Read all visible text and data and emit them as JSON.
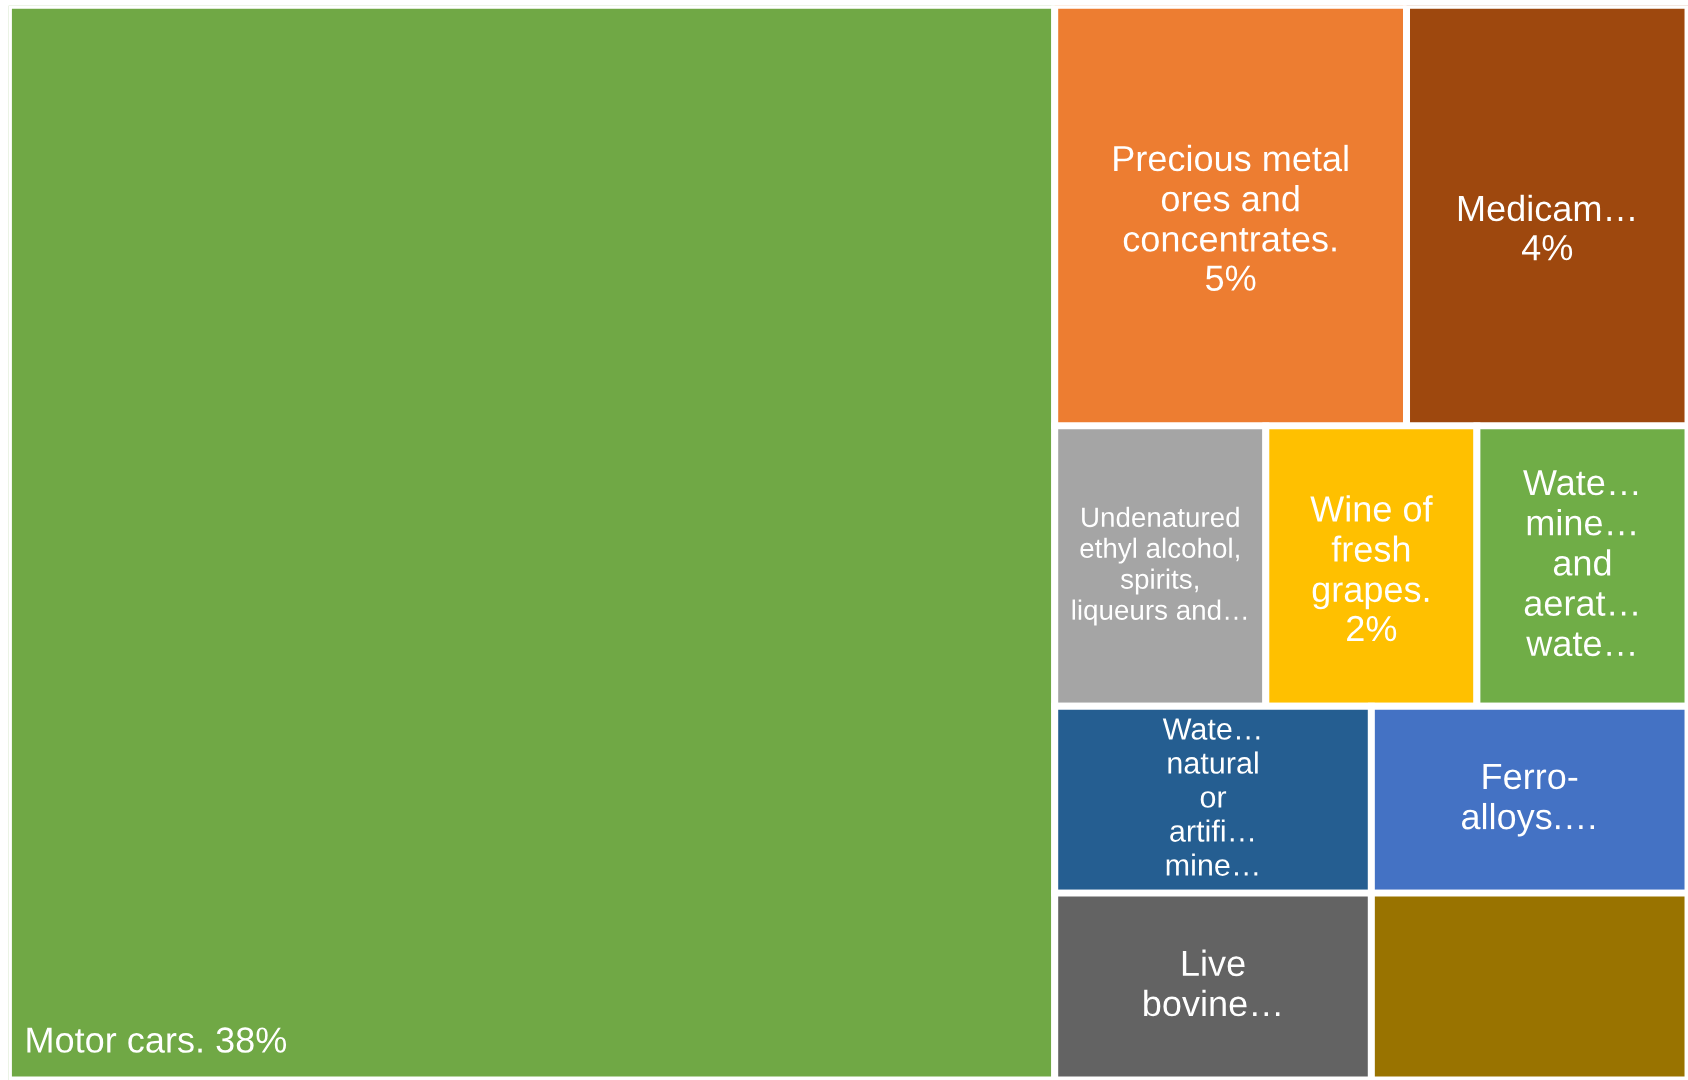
{
  "chart_data": {
    "type": "other",
    "categories": [
      "Motor cars.",
      "Precious metal\nores and\nconcentrates.",
      "Medicam…",
      "Undenatured\nethyl alcohol,\nspirits,\nliqueurs and…",
      "Wine of\nfresh\ngrapes.",
      "Wate…\nmine…\nand\naerat…\nwate…",
      "Wate…\nnatural\nor\nartifi…\nmine…",
      "Live\nbovine…",
      "Ferro-\nalloys.…",
      null
    ],
    "values": [
      38,
      5,
      4,
      null,
      2,
      null,
      null,
      null,
      null,
      null
    ],
    "value_labels": [
      "38%",
      "5%",
      "4%",
      null,
      "2%",
      null,
      null,
      null,
      null,
      null
    ],
    "colors": [
      "#70a845",
      "#ed7d31",
      "#9e480e",
      "#a5a5a5",
      "#ffc000",
      "#70ad47",
      "#255e91",
      "#636363",
      "#4472c4",
      "#997300"
    ]
  }
}
